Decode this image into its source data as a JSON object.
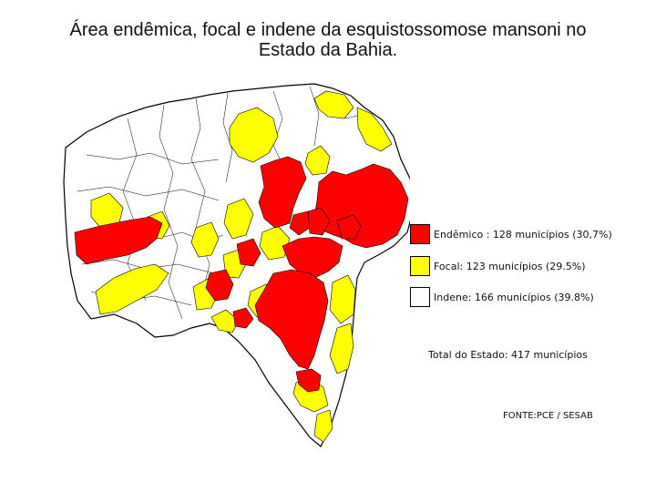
{
  "title_line1": "Área endêmica, focal e indene da esquistossomose mansoni no",
  "title_line2": "Estado da Bahia.",
  "legend": [
    {
      "label": "Endêmico : 128 municípios (30,7%)",
      "color": "#ff0000"
    },
    {
      "label": "Focal: 123 municípios (29.5%)",
      "color": "#ffff00"
    },
    {
      "label": "Indene: 166 municípios (39.8%)",
      "color": "#ffffff"
    }
  ],
  "total_label": "Total do Estado: 417 municípios",
  "source_label": "FONTE:PCE / SESAB",
  "colors": {
    "endemic": "#ff0000",
    "focal": "#ffff00",
    "indene": "#ffffff",
    "border": "#000000"
  }
}
